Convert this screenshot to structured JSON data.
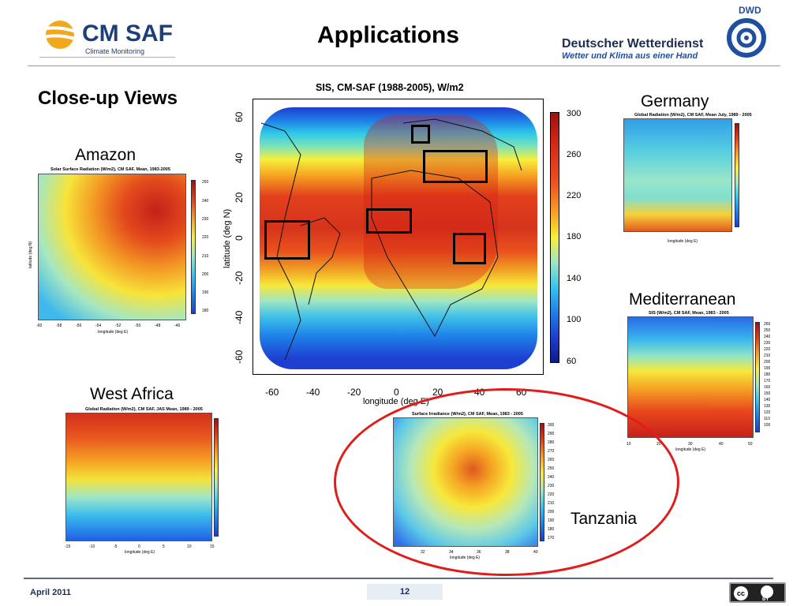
{
  "header": {
    "logo_brand": "CM SAF",
    "logo_sub": "Climate Monitoring",
    "title": "Applications",
    "dwd_code": "DWD",
    "dwd_name": "Deutscher Wetterdienst",
    "dwd_slogan": "Wetter und Klima aus einer Hand"
  },
  "section_title": "Close-up Views",
  "regions": {
    "amazon": "Amazon",
    "germany": "Germany",
    "west_africa": "West Africa",
    "mediterranean": "Mediterranean",
    "tanzania": "Tanzania"
  },
  "main_map": {
    "title": "SIS, CM-SAF (1988-2005), W/m2",
    "ylabel": "latitude (deg N)",
    "xlabel": "longitude (deg E)",
    "yticks": [
      "60",
      "40",
      "20",
      "0",
      "-20",
      "-40",
      "-60"
    ],
    "xticks": [
      "-60",
      "-40",
      "-20",
      "0",
      "20",
      "40",
      "60"
    ],
    "colorbar_ticks": [
      "300",
      "260",
      "220",
      "180",
      "140",
      "100",
      "60"
    ]
  },
  "small_maps": {
    "amazon": {
      "title": "Solar Surface Radiation (W/m2), CM SAF, Mean, 1983-2005",
      "xlabel": "longitude (deg E)",
      "ylabel": "latitude (deg N)",
      "xticks": [
        "-60",
        "-58",
        "-56",
        "-54",
        "-52",
        "-50",
        "-48",
        "-46"
      ],
      "cb_ticks": [
        "250",
        "240",
        "230",
        "220",
        "210",
        "200",
        "190",
        "180"
      ]
    },
    "germany": {
      "title": "Global Radiation (W/m2), CM SAF, Mean July, 1989 - 2005",
      "xlabel": "longitude (deg E)"
    },
    "mediterranean": {
      "title": "SIS (W/m2), CM SAF, Mean, 1983 - 2005",
      "xlabel": "longitude (deg E)",
      "xticks": [
        "10",
        "20",
        "30",
        "40",
        "50"
      ],
      "cb_ticks": [
        "260",
        "250",
        "240",
        "230",
        "220",
        "210",
        "200",
        "190",
        "180",
        "170",
        "160",
        "150",
        "140",
        "130",
        "120",
        "110",
        "100"
      ]
    },
    "west_africa": {
      "title": "Global Radiation (W/m2), CM SAF, JAS Mean, 1989 - 2005",
      "xlabel": "longitude (deg E)",
      "xticks": [
        "-15",
        "-10",
        "-5",
        "0",
        "5",
        "10",
        "15"
      ]
    },
    "tanzania": {
      "title": "Surface Irradiance (W/m2), CM SAF, Mean, 1983 - 2005",
      "xlabel": "longitude (deg E)",
      "xticks": [
        "32",
        "34",
        "36",
        "38",
        "40"
      ],
      "cb_ticks": [
        "300",
        "290",
        "280",
        "270",
        "260",
        "250",
        "240",
        "230",
        "220",
        "210",
        "200",
        "190",
        "180",
        "170"
      ]
    }
  },
  "footer": {
    "date": "April 2011",
    "page_number": "12",
    "cc_mark": "cc",
    "cc_by": "BY"
  },
  "colors": {
    "accent_blue": "#1c3f7a",
    "highlight_red": "#e21b1b"
  }
}
